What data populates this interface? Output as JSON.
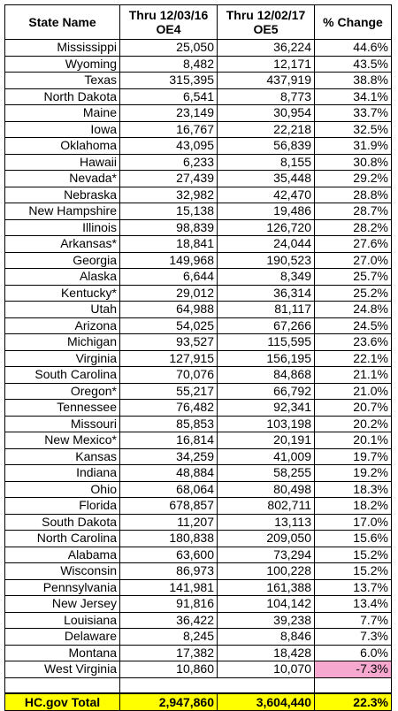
{
  "table": {
    "header": [
      [
        "State Name"
      ],
      [
        "Thru 12/03/16",
        "OE4"
      ],
      [
        "Thru 12/02/17",
        "OE5"
      ],
      [
        "% Change"
      ]
    ],
    "rows": [
      [
        "Mississippi",
        "25,050",
        "36,224",
        "44.6%"
      ],
      [
        "Wyoming",
        "8,482",
        "12,171",
        "43.5%"
      ],
      [
        "Texas",
        "315,395",
        "437,919",
        "38.8%"
      ],
      [
        "North Dakota",
        "6,541",
        "8,773",
        "34.1%"
      ],
      [
        "Maine",
        "23,149",
        "30,954",
        "33.7%"
      ],
      [
        "Iowa",
        "16,767",
        "22,218",
        "32.5%"
      ],
      [
        "Oklahoma",
        "43,095",
        "56,839",
        "31.9%"
      ],
      [
        "Hawaii",
        "6,233",
        "8,155",
        "30.8%"
      ],
      [
        "Nevada*",
        "27,439",
        "35,448",
        "29.2%"
      ],
      [
        "Nebraska",
        "32,982",
        "42,470",
        "28.8%"
      ],
      [
        "New Hampshire",
        "15,138",
        "19,486",
        "28.7%"
      ],
      [
        "Illinois",
        "98,839",
        "126,720",
        "28.2%"
      ],
      [
        "Arkansas*",
        "18,841",
        "24,044",
        "27.6%"
      ],
      [
        "Georgia",
        "149,968",
        "190,523",
        "27.0%"
      ],
      [
        "Alaska",
        "6,644",
        "8,349",
        "25.7%"
      ],
      [
        "Kentucky*",
        "29,012",
        "36,314",
        "25.2%"
      ],
      [
        "Utah",
        "64,988",
        "81,117",
        "24.8%"
      ],
      [
        "Arizona",
        "54,025",
        "67,266",
        "24.5%"
      ],
      [
        "Michigan",
        "93,527",
        "115,595",
        "23.6%"
      ],
      [
        "Virginia",
        "127,915",
        "156,195",
        "22.1%"
      ],
      [
        "South Carolina",
        "70,076",
        "84,868",
        "21.1%"
      ],
      [
        "Oregon*",
        "55,217",
        "66,792",
        "21.0%"
      ],
      [
        "Tennessee",
        "76,482",
        "92,341",
        "20.7%"
      ],
      [
        "Missouri",
        "85,853",
        "103,198",
        "20.2%"
      ],
      [
        "New Mexico*",
        "16,814",
        "20,191",
        "20.1%"
      ],
      [
        "Kansas",
        "34,259",
        "41,009",
        "19.7%"
      ],
      [
        "Indiana",
        "48,884",
        "58,255",
        "19.2%"
      ],
      [
        "Ohio",
        "68,064",
        "80,498",
        "18.3%"
      ],
      [
        "Florida",
        "678,857",
        "802,711",
        "18.2%"
      ],
      [
        "South Dakota",
        "11,207",
        "13,113",
        "17.0%"
      ],
      [
        "North Carolina",
        "180,838",
        "209,050",
        "15.6%"
      ],
      [
        "Alabama",
        "63,600",
        "73,294",
        "15.2%"
      ],
      [
        "Wisconsin",
        "86,973",
        "100,228",
        "15.2%"
      ],
      [
        "Pennsylvania",
        "141,981",
        "161,388",
        "13.7%"
      ],
      [
        "New Jersey",
        "91,816",
        "104,142",
        "13.4%"
      ],
      [
        "Louisiana",
        "36,422",
        "39,238",
        "7.7%"
      ],
      [
        "Delaware",
        "8,245",
        "8,846",
        "7.3%"
      ],
      [
        "Montana",
        "17,382",
        "18,428",
        "6.0%"
      ],
      [
        "West Virginia",
        "10,860",
        "10,070",
        "-7.3%"
      ]
    ],
    "total": [
      "HC.gov Total",
      "2,947,860",
      "3,604,440",
      "22.3%"
    ]
  }
}
